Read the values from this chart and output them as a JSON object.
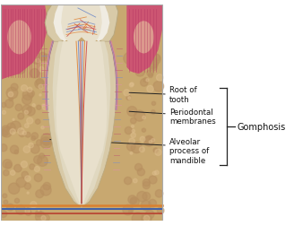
{
  "background_color": "#ffffff",
  "labels": {
    "root_of_tooth": "Root of\ntooth",
    "periodontal_membranes": "Periodontal\nmembranes",
    "alveolar_process": "Alveolar\nprocess of\nmandible",
    "gomphosis": "Gomphosis"
  },
  "font_size_label": 6.2,
  "font_size_gomphosis": 7.0,
  "line_color": "#222222",
  "text_color": "#111111",
  "colors": {
    "bone_bg": "#c8a870",
    "bone_light": "#d4b888",
    "gum_pink": "#cc5572",
    "gum_stripe": "#d4607a",
    "tooth_crown_white": "#f0ece2",
    "tooth_crown_outer": "#e0d8c0",
    "tooth_dentin": "#d8caa8",
    "tooth_root_outer": "#c8b890",
    "pulp_space": "#e8e0cc",
    "pulp_inner": "#ece4d0",
    "nerve_orange": "#e08030",
    "nerve_blue": "#6080c8",
    "nerve_red": "#c84040",
    "perio_pink": "#e090a8",
    "perio_blue": "#8090c0",
    "perio_red": "#c06070",
    "base_orange": "#d88030",
    "base_blue": "#4060a8",
    "base_red": "#b84030",
    "bone_speckle": "#b89060",
    "gum_bg_light": "#e8c8a0"
  }
}
